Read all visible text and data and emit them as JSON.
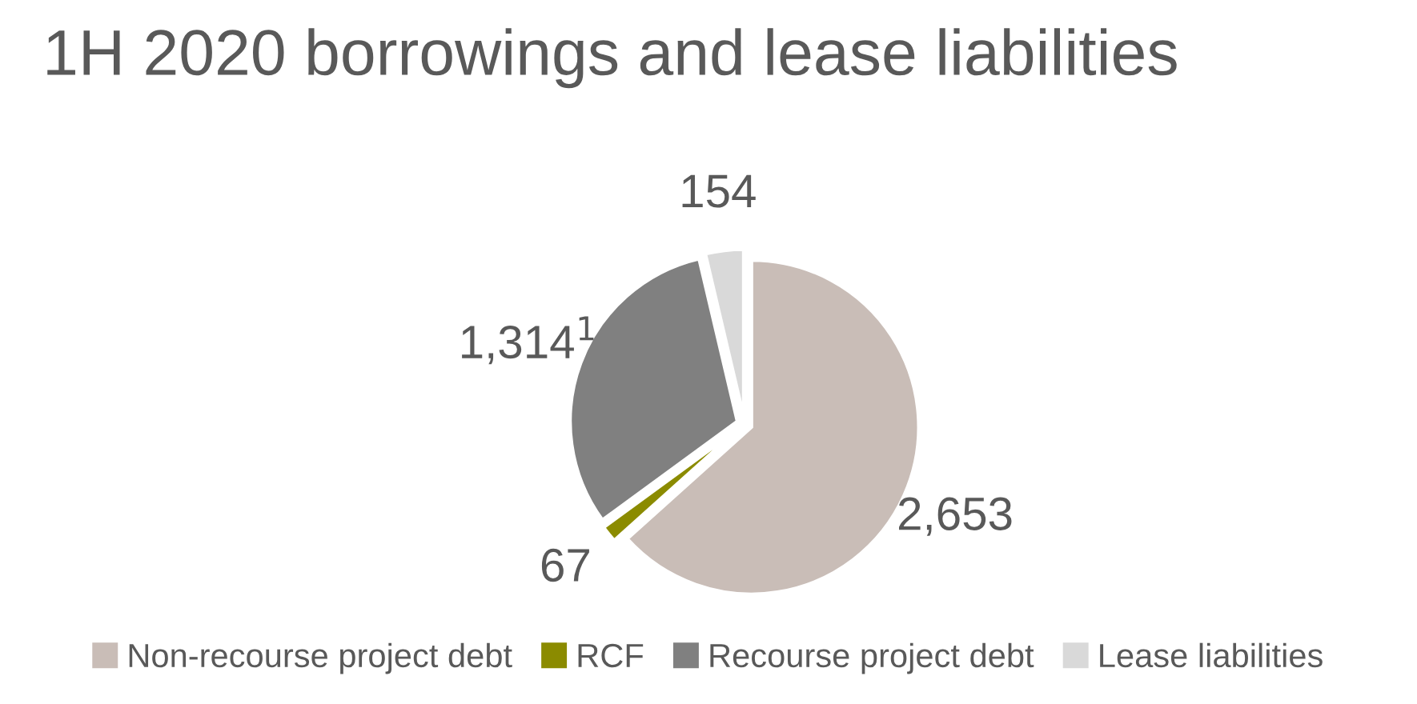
{
  "chart_data": {
    "type": "pie",
    "title": "1H 2020 borrowings and lease liabilities",
    "categories": [
      "Non-recourse project debt",
      "RCF",
      "Recourse project debt",
      "Lease liabilities"
    ],
    "values": [
      2653,
      67,
      1314,
      154
    ],
    "colors": [
      "#c9bdb7",
      "#8b8b00",
      "#808080",
      "#d9d9d9"
    ],
    "value_labels": [
      "2,653",
      "67",
      "1,314$^{1}$",
      "154"
    ],
    "legend": "bottom"
  }
}
